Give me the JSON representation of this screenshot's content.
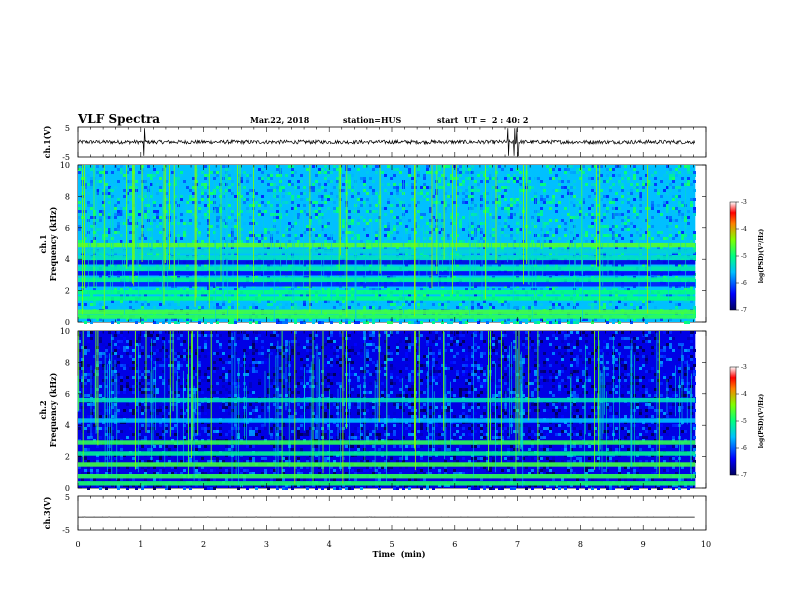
{
  "header": {
    "title": "VLF Spectra",
    "date": "Mar.22, 2018",
    "station": "station=HUS",
    "start": "start  UT =  2 : 40: 2"
  },
  "x_axis": {
    "label": "Time  (min)",
    "ticks": [
      "0",
      "1",
      "2",
      "3",
      "4",
      "5",
      "6",
      "7",
      "8",
      "9",
      "10"
    ]
  },
  "chart_data": [
    {
      "type": "line",
      "panel": "waveform-ch1",
      "ylabel": "ch.1(V)",
      "ylim": [
        -5,
        5
      ],
      "y_ticks": [
        "5",
        "-5"
      ],
      "xlim": [
        0,
        10
      ],
      "baseline": 0,
      "trace_end_min": 9.83,
      "spikes_min": [
        1.05,
        6.85,
        6.95,
        7.0
      ]
    },
    {
      "type": "heatmap",
      "panel": "spectrogram-ch1",
      "ylabel": "ch.1\nFrequency (kHz)",
      "ylim": [
        0,
        10
      ],
      "y_ticks": [
        "0",
        "2",
        "4",
        "6",
        "8",
        "10"
      ],
      "xlim": [
        0,
        10
      ],
      "data_end_min": 9.83,
      "background_level": -5.6,
      "bands_khz": [
        {
          "f": 0.35,
          "level": -4.8
        },
        {
          "f": 0.65,
          "level": -4.7
        },
        {
          "f": 1.5,
          "level": -5.0
        },
        {
          "f": 1.9,
          "level": -5.0
        },
        {
          "f": 2.4,
          "level": -6.3
        },
        {
          "f": 2.7,
          "level": -5.1
        },
        {
          "f": 3.1,
          "level": -6.4
        },
        {
          "f": 3.4,
          "level": -5.2
        },
        {
          "f": 3.8,
          "level": -6.5
        },
        {
          "f": 4.1,
          "level": -5.3
        },
        {
          "f": 4.5,
          "level": -5.4
        },
        {
          "f": 4.9,
          "level": -4.6
        }
      ],
      "colorbar": {
        "label": "log(PSD)(V²/Hz)",
        "range": [
          -7,
          -3
        ],
        "ticks": [
          "-3",
          "-4",
          "-5",
          "-6",
          "-7"
        ]
      }
    },
    {
      "type": "heatmap",
      "panel": "spectrogram-ch2",
      "ylabel": "ch.2\nFrequency (kHz)",
      "ylim": [
        0,
        10
      ],
      "y_ticks": [
        "0",
        "2",
        "4",
        "6",
        "8",
        "10"
      ],
      "xlim": [
        0,
        10
      ],
      "data_end_min": 9.83,
      "background_level": -6.5,
      "bands_khz": [
        {
          "f": 0.3,
          "level": -4.9
        },
        {
          "f": 0.75,
          "level": -4.8
        },
        {
          "f": 1.5,
          "level": -4.7
        },
        {
          "f": 2.2,
          "level": -5.1
        },
        {
          "f": 2.9,
          "level": -4.8
        },
        {
          "f": 4.3,
          "level": -5.6
        },
        {
          "f": 5.6,
          "level": -5.3
        }
      ],
      "colorbar": {
        "label": "log(PSD)(V²/Hz)",
        "range": [
          -7,
          -3
        ],
        "ticks": [
          "-3",
          "-4",
          "-5",
          "-6",
          "-7"
        ]
      }
    },
    {
      "type": "line",
      "panel": "waveform-ch3",
      "ylabel": "ch.3(V)",
      "ylim": [
        -5,
        5
      ],
      "y_ticks": [
        "5",
        "-5"
      ],
      "xlim": [
        0,
        10
      ],
      "baseline": -1.2,
      "trace_end_min": 9.83,
      "spikes_min": []
    }
  ]
}
